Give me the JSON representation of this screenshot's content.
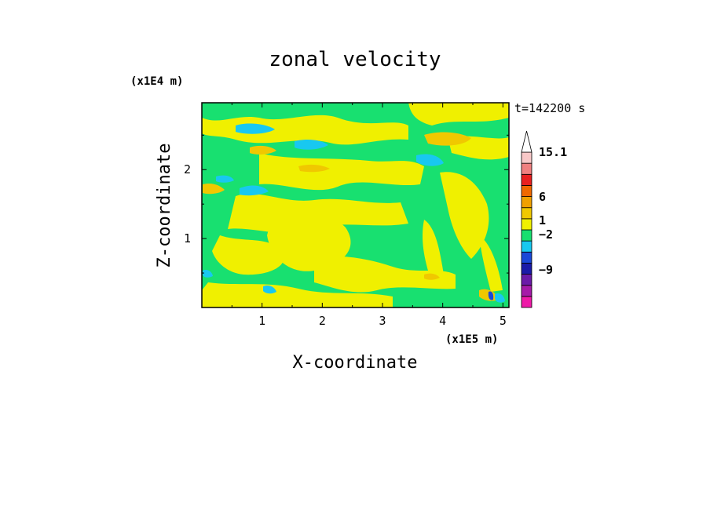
{
  "chart_data": {
    "type": "heatmap",
    "title": "zonal velocity",
    "xlabel": "X-coordinate",
    "ylabel": "Z-coordinate",
    "x_unit": "(x1E5 m)",
    "y_unit": "(x1E4 m)",
    "time_label": "t=142200 s",
    "xlim": [
      0,
      5.1
    ],
    "ylim": [
      0,
      2.97
    ],
    "x_ticks": [
      1,
      2,
      3,
      4,
      5
    ],
    "y_ticks": [
      1,
      2
    ],
    "x_tick_labels": [
      "1",
      "2",
      "3",
      "4",
      "5"
    ],
    "y_tick_labels": [
      "1",
      "2"
    ],
    "grid": false,
    "colorbar": {
      "levels": [
        {
          "color": "#ee1aa8"
        },
        {
          "color": "#a51aa8"
        },
        {
          "color": "#6a1aa8"
        },
        {
          "color": "#1a1aa8"
        },
        {
          "color": "#1a48d8"
        },
        {
          "color": "#18c8f0"
        },
        {
          "color": "#18e070"
        },
        {
          "color": "#f0f000"
        },
        {
          "color": "#f0c800"
        },
        {
          "color": "#f0a000"
        },
        {
          "color": "#f06800"
        },
        {
          "color": "#e82020"
        },
        {
          "color": "#f08080"
        },
        {
          "color": "#f8c8c8"
        },
        {
          "color": "#ffffff"
        }
      ],
      "tick_labels": [
        {
          "label": "15.1",
          "value": 15.1
        },
        {
          "label": "6",
          "value": 6
        },
        {
          "label": "1",
          "value": 1
        },
        {
          "label": "−2",
          "value": -2
        },
        {
          "label": "−9",
          "value": -9
        }
      ]
    },
    "colors": {
      "background": "#18e070",
      "positive_weak": "#f0f000",
      "positive": "#f0c800",
      "negative_weak": "#18e070",
      "negative": "#18c8f0",
      "strong_negative": "#1a48d8",
      "strong_positive": "#f06800"
    }
  }
}
